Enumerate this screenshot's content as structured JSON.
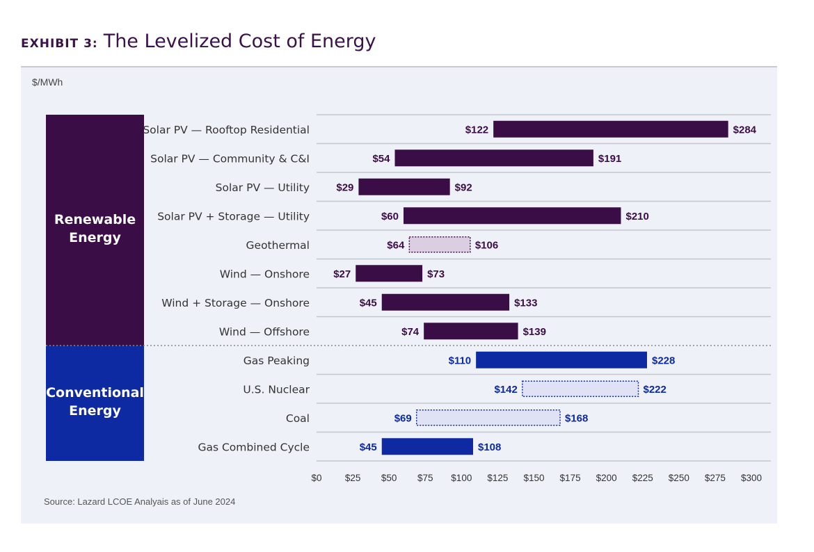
{
  "header": {
    "exhibit_label": "EXHIBIT 3:",
    "title": "The Levelized Cost of Energy"
  },
  "unit_label": "$/MWh",
  "source": "Source: Lazard LCOE Analyais as of June 2024",
  "colors": {
    "renewable": "#3b0d47",
    "conventional": "#0d2aa3",
    "dotted_fill_renewable": "#dbcfdf",
    "dotted_fill_conventional": "#dfe2f5",
    "grid": "#c5c5cc"
  },
  "chart_data": {
    "type": "bar",
    "orientation": "horizontal-range",
    "xlim": [
      0,
      300
    ],
    "x_ticks": [
      "$0",
      "$25",
      "$50",
      "$75",
      "$100",
      "$125",
      "$150",
      "$175",
      "$200",
      "$225",
      "$250",
      "$275",
      "$300"
    ],
    "x_tick_values": [
      0,
      25,
      50,
      75,
      100,
      125,
      150,
      175,
      200,
      225,
      250,
      275,
      300
    ],
    "groups": [
      {
        "name": "Renewable Energy",
        "lines": [
          "Renewable",
          "Energy"
        ],
        "color_key": "renewable"
      },
      {
        "name": "Conventional Energy",
        "lines": [
          "Conventional",
          "Energy"
        ],
        "color_key": "conventional"
      }
    ],
    "rows": [
      {
        "label": "Solar PV — Rooftop Residential",
        "group": 0,
        "low": 122,
        "high": 284,
        "low_label": "$122",
        "high_label": "$284",
        "dotted": false
      },
      {
        "label": "Solar PV — Community & C&I",
        "group": 0,
        "low": 54,
        "high": 191,
        "low_label": "$54",
        "high_label": "$191",
        "dotted": false
      },
      {
        "label": "Solar PV — Utility",
        "group": 0,
        "low": 29,
        "high": 92,
        "low_label": "$29",
        "high_label": "$92",
        "dotted": false
      },
      {
        "label": "Solar PV + Storage — Utility",
        "group": 0,
        "low": 60,
        "high": 210,
        "low_label": "$60",
        "high_label": "$210",
        "dotted": false
      },
      {
        "label": "Geothermal",
        "group": 0,
        "low": 64,
        "high": 106,
        "low_label": "$64",
        "high_label": "$106",
        "dotted": true
      },
      {
        "label": "Wind — Onshore",
        "group": 0,
        "low": 27,
        "high": 73,
        "low_label": "$27",
        "high_label": "$73",
        "dotted": false
      },
      {
        "label": "Wind + Storage — Onshore",
        "group": 0,
        "low": 45,
        "high": 133,
        "low_label": "$45",
        "high_label": "$133",
        "dotted": false
      },
      {
        "label": "Wind — Offshore",
        "group": 0,
        "low": 74,
        "high": 139,
        "low_label": "$74",
        "high_label": "$139",
        "dotted": false
      },
      {
        "label": "Gas Peaking",
        "group": 1,
        "low": 110,
        "high": 228,
        "low_label": "$110",
        "high_label": "$228",
        "dotted": false
      },
      {
        "label": "U.S. Nuclear",
        "group": 1,
        "low": 142,
        "high": 222,
        "low_label": "$142",
        "high_label": "$222",
        "dotted": true
      },
      {
        "label": "Coal",
        "group": 1,
        "low": 69,
        "high": 168,
        "low_label": "$69",
        "high_label": "$168",
        "dotted": true
      },
      {
        "label": "Gas Combined Cycle",
        "group": 1,
        "low": 45,
        "high": 108,
        "low_label": "$45",
        "high_label": "$108",
        "dotted": false
      }
    ]
  }
}
